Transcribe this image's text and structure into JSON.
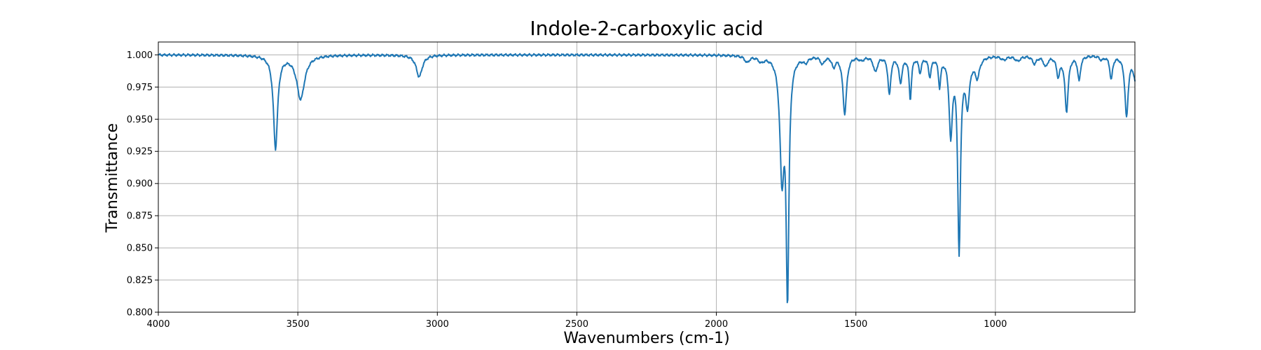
{
  "chart_data": {
    "type": "line",
    "title": "Indole-2-carboxylic acid",
    "xlabel": "Wavenumbers (cm-1)",
    "ylabel": "Transmittance",
    "xlim": [
      4000,
      500
    ],
    "ylim": [
      0.8,
      1.01
    ],
    "x_inverted": true,
    "grid": true,
    "xticks": [
      4000,
      3500,
      3000,
      2500,
      2000,
      1500,
      1000
    ],
    "yticks": [
      0.8,
      0.825,
      0.85,
      0.875,
      0.9,
      0.925,
      0.95,
      0.975,
      1.0
    ],
    "xtick_labels": [
      "4000",
      "3500",
      "3000",
      "2500",
      "2000",
      "1500",
      "1000"
    ],
    "ytick_labels": [
      "0.800",
      "0.825",
      "0.850",
      "0.875",
      "0.900",
      "0.925",
      "0.950",
      "0.975",
      "1.000"
    ],
    "series": [
      {
        "name": "Indole-2-carboxylic acid",
        "color": "#1f77b4",
        "baseline": 1.0,
        "bands": [
          {
            "center": 3580,
            "depth": 0.072,
            "width": 9
          },
          {
            "center": 3490,
            "depth": 0.034,
            "width": 17
          },
          {
            "center": 3065,
            "depth": 0.017,
            "width": 13
          },
          {
            "center": 1890,
            "depth": 0.005,
            "width": 10
          },
          {
            "center": 1840,
            "depth": 0.004,
            "width": 12
          },
          {
            "center": 1765,
            "depth": 0.09,
            "width": 9
          },
          {
            "center": 1745,
            "depth": 0.18,
            "width": 6
          },
          {
            "center": 1680,
            "depth": 0.004,
            "width": 10
          },
          {
            "center": 1620,
            "depth": 0.006,
            "width": 8
          },
          {
            "center": 1580,
            "depth": 0.008,
            "width": 7
          },
          {
            "center": 1540,
            "depth": 0.045,
            "width": 8
          },
          {
            "center": 1480,
            "depth": 0.003,
            "width": 12
          },
          {
            "center": 1430,
            "depth": 0.012,
            "width": 9
          },
          {
            "center": 1380,
            "depth": 0.03,
            "width": 6
          },
          {
            "center": 1340,
            "depth": 0.02,
            "width": 7
          },
          {
            "center": 1305,
            "depth": 0.033,
            "width": 5
          },
          {
            "center": 1270,
            "depth": 0.012,
            "width": 6
          },
          {
            "center": 1235,
            "depth": 0.015,
            "width": 6
          },
          {
            "center": 1200,
            "depth": 0.022,
            "width": 5
          },
          {
            "center": 1160,
            "depth": 0.06,
            "width": 7
          },
          {
            "center": 1130,
            "depth": 0.15,
            "width": 6
          },
          {
            "center": 1100,
            "depth": 0.035,
            "width": 9
          },
          {
            "center": 1065,
            "depth": 0.015,
            "width": 10
          },
          {
            "center": 970,
            "depth": 0.003,
            "width": 12
          },
          {
            "center": 920,
            "depth": 0.004,
            "width": 12
          },
          {
            "center": 860,
            "depth": 0.006,
            "width": 9
          },
          {
            "center": 820,
            "depth": 0.008,
            "width": 9
          },
          {
            "center": 775,
            "depth": 0.015,
            "width": 7
          },
          {
            "center": 745,
            "depth": 0.043,
            "width": 7
          },
          {
            "center": 700,
            "depth": 0.019,
            "width": 6
          },
          {
            "center": 620,
            "depth": 0.003,
            "width": 8
          },
          {
            "center": 585,
            "depth": 0.018,
            "width": 6
          },
          {
            "center": 530,
            "depth": 0.047,
            "width": 7
          },
          {
            "center": 495,
            "depth": 0.022,
            "width": 10
          }
        ]
      }
    ]
  }
}
